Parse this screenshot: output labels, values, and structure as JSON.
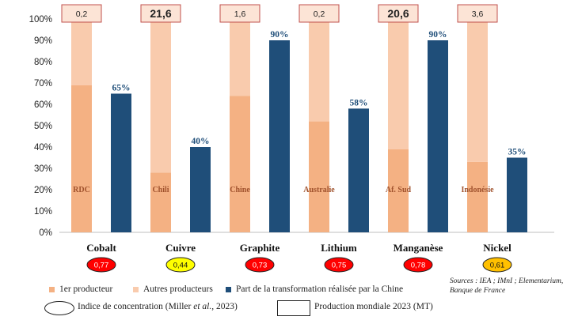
{
  "chart_data": {
    "type": "bar",
    "categories": [
      "Cobalt",
      "Cuivre",
      "Graphite",
      "Lithium",
      "Manganèse",
      "Nickel"
    ],
    "series": [
      {
        "name": "1er producteur",
        "values": [
          69,
          28,
          64,
          52,
          39,
          33
        ],
        "color": "#f4b183"
      },
      {
        "name": "Autres producteurs",
        "values": [
          31,
          72,
          36,
          48,
          61,
          67
        ],
        "color": "#f9cbad"
      },
      {
        "name": "Part de la transformation réalisée par la Chine",
        "values": [
          65,
          40,
          90,
          58,
          90,
          35
        ],
        "color": "#1f4e79"
      }
    ],
    "stacked_series": [
      "1er producteur",
      "Autres producteurs"
    ],
    "producer_labels": [
      "RDC",
      "Chili",
      "Chine",
      "Australie",
      "Af. Sud",
      "Indonésie"
    ],
    "china_share_labels": [
      "65%",
      "40%",
      "90%",
      "58%",
      "90%",
      "35%"
    ],
    "production_2023_mt": [
      "0,2",
      "21,6",
      "1,6",
      "0,2",
      "20,6",
      "3,6"
    ],
    "production_bold": [
      false,
      true,
      false,
      false,
      true,
      false
    ],
    "concentration_index": [
      "0,77",
      "0,44",
      "0,73",
      "0,75",
      "0,78",
      "0,61"
    ],
    "concentration_colors": [
      "#ff0000",
      "#ffff00",
      "#ff0000",
      "#ff0000",
      "#ff0000",
      "#ffc000"
    ],
    "y_ticks": [
      "0%",
      "10%",
      "20%",
      "30%",
      "40%",
      "50%",
      "60%",
      "70%",
      "80%",
      "90%",
      "100%"
    ],
    "ylim": [
      0,
      100
    ],
    "grid": false
  },
  "legend": {
    "first_producer": "1er producteur",
    "other_producers": "Autres producteurs",
    "china_share": "Part de la transformation réalisée par la Chine",
    "concentration_pre": "Indice de concentration (Miller ",
    "concentration_italic": "et al.",
    "concentration_post": ", 2023)",
    "production": "Production mondiale 2023 (MT)"
  },
  "sources": "Sources : IEA ; IMnI ; Elementarium, Banque de France"
}
